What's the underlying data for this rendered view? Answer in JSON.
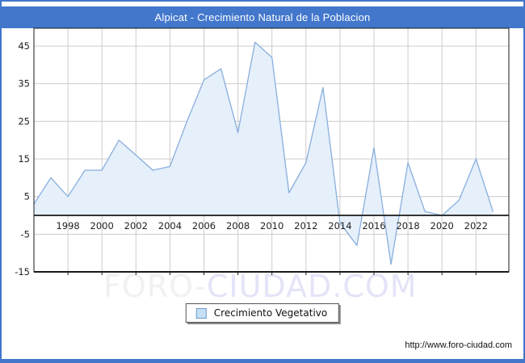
{
  "window": {
    "title": "Alpicat - Crecimiento Natural de la Poblacion"
  },
  "colors": {
    "accent_blue": "#4277cc",
    "series_line": "#8aaede",
    "series_fill": "#e5f0fb",
    "gridline": "#cccccc",
    "axis_line": "#1a1a1a",
    "tick_text": "#222222",
    "legend_swatch_fill": "#c5dff5",
    "legend_swatch_border": "#6f9cc9",
    "watermark_left": "#f1f1f1",
    "watermark_right": "#e4e4f8"
  },
  "chart_data": {
    "type": "area",
    "title": "Alpicat - Crecimiento Natural de la Poblacion",
    "xlabel": "",
    "ylabel": "",
    "x": [
      1996,
      1997,
      1998,
      1999,
      2000,
      2001,
      2002,
      2003,
      2004,
      2005,
      2006,
      2007,
      2008,
      2009,
      2010,
      2011,
      2012,
      2013,
      2014,
      2015,
      2016,
      2017,
      2018,
      2019,
      2020,
      2021,
      2022,
      2023
    ],
    "series": [
      {
        "name": "Crecimiento Vegetativo",
        "values": [
          3,
          10,
          5,
          12,
          12,
          20,
          16,
          12,
          13,
          25,
          36,
          39,
          22,
          46,
          42,
          6,
          14,
          34,
          -2,
          -8,
          18,
          -13,
          14,
          1,
          0,
          4,
          15,
          1
        ]
      }
    ],
    "ylim": [
      -15,
      50
    ],
    "yticks": [
      45,
      35,
      25,
      15,
      5,
      -5,
      -15
    ],
    "xticks": [
      1998,
      2000,
      2002,
      2004,
      2006,
      2008,
      2010,
      2012,
      2014,
      2016,
      2018,
      2020,
      2022
    ],
    "grid": true,
    "legend_position": "bottom-center"
  },
  "legend": {
    "label": "Crecimiento Vegetativo"
  },
  "watermark": {
    "left": "FORO-",
    "right": "CIUDAD.COM"
  },
  "footer": {
    "url": "http://www.foro-ciudad.com"
  }
}
